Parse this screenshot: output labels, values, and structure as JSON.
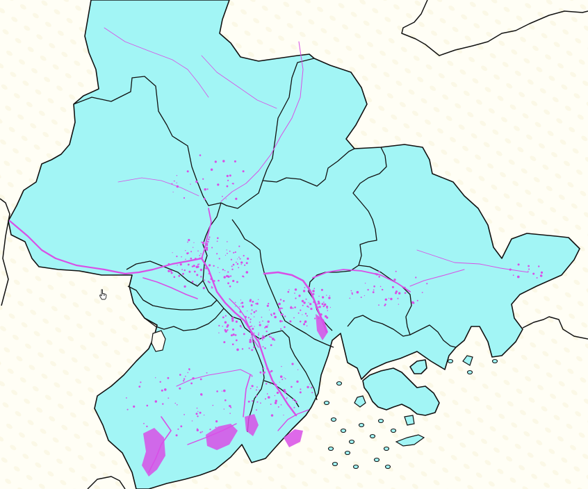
{
  "map": {
    "land_color": "#a2f5f5",
    "water_color": "#d84fe6",
    "boundary_color": "#111111",
    "background_color": "#fffef5"
  },
  "cursor": {
    "icon": "hand-pointer-icon"
  }
}
